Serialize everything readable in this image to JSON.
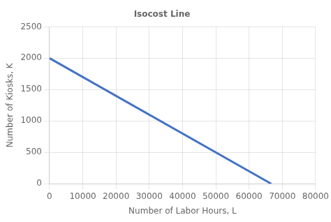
{
  "chart_data": {
    "type": "line",
    "title": "Isocost Line",
    "xlabel": "Number of Labor Hours, L",
    "ylabel": "Number of Kiosks, K",
    "x": [
      0,
      66667
    ],
    "values": [
      2000,
      0
    ],
    "color": "#4472C4",
    "xlim": [
      0,
      80000
    ],
    "ylim": [
      0,
      2500
    ],
    "xticks": [
      0,
      10000,
      20000,
      30000,
      40000,
      50000,
      60000,
      70000,
      80000
    ],
    "yticks": [
      0,
      500,
      1000,
      1500,
      2000,
      2500
    ],
    "grid": true
  }
}
